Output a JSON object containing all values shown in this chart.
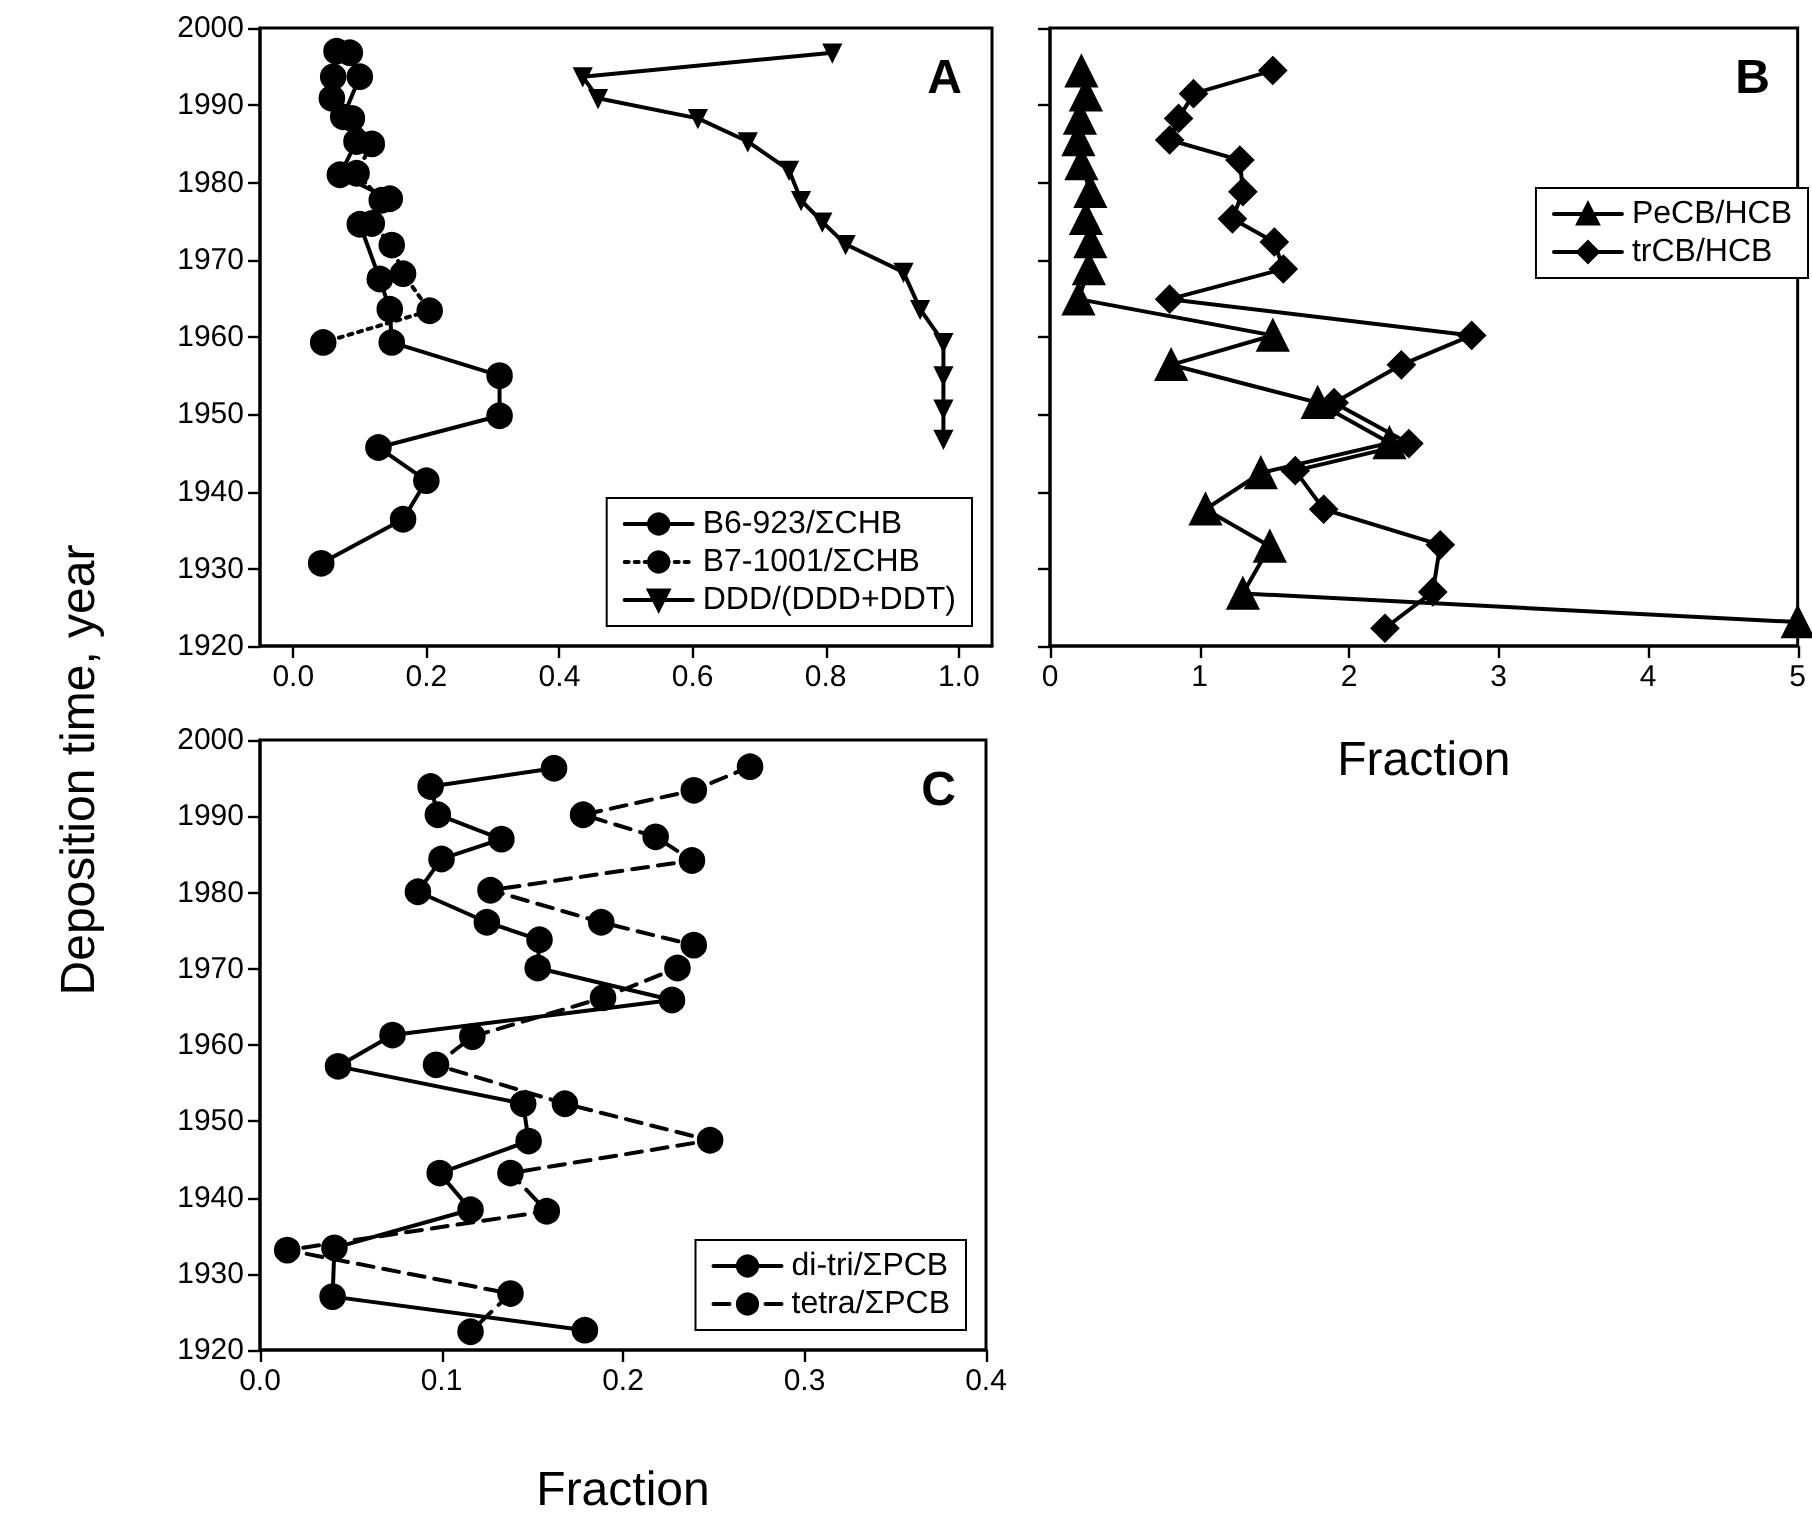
{
  "chart_data": [
    {
      "type": "line",
      "title": "A",
      "ylabel": "Deposition time, year",
      "xlim": [
        -0.05,
        1.05
      ],
      "xticks": [
        {
          "value": 0,
          "label": "0.0"
        },
        {
          "value": 0.2,
          "label": "0.2"
        },
        {
          "value": 0.4,
          "label": "0.4"
        },
        {
          "value": 0.6,
          "label": "0.6"
        },
        {
          "value": 0.8,
          "label": "0.8"
        },
        {
          "value": 1,
          "label": "1.0"
        }
      ],
      "ylim": [
        1920,
        2000
      ],
      "yticks": [
        1920,
        1930,
        1940,
        1950,
        1960,
        1970,
        1980,
        1990,
        2000
      ],
      "legend": "bottom right",
      "line_style": "solid",
      "series": [
        {
          "name": "B6-923/ΣCHB",
          "color": "#000000",
          "marker": "circle",
          "x": [
            0.085,
            0.1,
            0.075,
            0.095,
            0.07,
            0.145,
            0.1,
            0.13,
            0.145,
            0.148,
            0.31,
            0.31,
            0.128,
            0.2,
            0.165,
            0.042
          ],
          "values": [
            1996.8,
            1993.7,
            1988.5,
            1985.3,
            1981.0,
            1977.9,
            1974.6,
            1967.5,
            1963.6,
            1959.3,
            1955.0,
            1949.8,
            1945.7,
            1941.4,
            1936.4,
            1930.7
          ]
        },
        {
          "name": "B7-1001/ΣCHB",
          "color": "#000000",
          "marker": "circle",
          "line_style": "dotted",
          "x": [
            0.065,
            0.06,
            0.058,
            0.088,
            0.118,
            0.095,
            0.133,
            0.118,
            0.148,
            0.165,
            0.205,
            0.045
          ],
          "values": [
            1997.0,
            1993.7,
            1990.9,
            1988.3,
            1985.0,
            1981.2,
            1977.7,
            1974.7,
            1971.9,
            1968.2,
            1963.4,
            1959.3
          ]
        },
        {
          "name": "DDD/(DDD+DDT)",
          "color": "#000000",
          "marker": "triangle-down",
          "x": [
            0.81,
            0.435,
            0.458,
            0.608,
            0.683,
            0.745,
            0.763,
            0.795,
            0.83,
            0.917,
            0.942,
            0.977,
            0.977,
            0.977,
            0.977
          ],
          "values": [
            1996.8,
            1993.7,
            1990.9,
            1988.3,
            1985.3,
            1981.6,
            1977.7,
            1974.9,
            1972.0,
            1968.4,
            1963.6,
            1959.3,
            1955.0,
            1950.7,
            1946.8
          ]
        }
      ]
    },
    {
      "type": "line",
      "title": "B",
      "xlabel": "Fraction",
      "xlim": [
        0,
        5
      ],
      "xticks": [
        0,
        1,
        2,
        3,
        4,
        5
      ],
      "ylim": [
        1920,
        2000
      ],
      "yticks": [
        1920,
        1930,
        1940,
        1950,
        1960,
        1970,
        1980,
        1990,
        2000
      ],
      "tick_labels": "x",
      "legend": "right",
      "line_style": "solid",
      "series": [
        {
          "name": "PeCB/HCB",
          "color": "#000000",
          "marker": "triangle",
          "x": [
            0.21,
            0.24,
            0.2,
            0.19,
            0.21,
            0.27,
            0.24,
            0.27,
            0.26,
            0.19,
            1.49,
            0.81,
            1.79,
            2.27,
            1.41,
            1.04,
            1.47,
            1.29,
            5
          ],
          "values": [
            1994.4,
            1991.3,
            1988.3,
            1985.5,
            1982.4,
            1978.8,
            1975.3,
            1972.3,
            1968.8,
            1964.9,
            1960.2,
            1956.4,
            1951.5,
            1946.3,
            1942.4,
            1937.7,
            1932.9,
            1926.8,
            1923.1
          ]
        },
        {
          "name": "trCB/HCB",
          "color": "#000000",
          "marker": "diamond",
          "x": [
            1.49,
            0.96,
            0.86,
            0.8,
            1.27,
            1.29,
            1.22,
            1.5,
            1.56,
            0.8,
            2.82,
            2.35,
            1.9,
            2.4,
            1.64,
            1.83,
            2.61,
            2.56,
            2.24
          ],
          "values": [
            1994.5,
            1991.5,
            1988.3,
            1985.5,
            1982.9,
            1978.8,
            1975.3,
            1972.3,
            1968.8,
            1964.9,
            1960.2,
            1956.4,
            1951.5,
            1946.2,
            1942.7,
            1937.7,
            1933.1,
            1927.0,
            1922.3
          ]
        }
      ]
    },
    {
      "type": "line",
      "title": "C",
      "xlabel": "Fraction",
      "xlim": [
        0,
        0.4
      ],
      "xticks": [
        {
          "value": 0,
          "label": "0.0"
        },
        0.1,
        0.2,
        0.3,
        0.4
      ],
      "ylim": [
        1920,
        2000
      ],
      "yticks": [
        1920,
        1930,
        1940,
        1950,
        1960,
        1970,
        1980,
        1990,
        2000
      ],
      "legend": "bottom right",
      "line_style": "solid",
      "series": [
        {
          "name": "di-tri/ΣPCB",
          "color": "#000000",
          "marker": "circle",
          "x": [
            0.162,
            0.094,
            0.098,
            0.133,
            0.1,
            0.087,
            0.125,
            0.154,
            0.153,
            0.227,
            0.073,
            0.043,
            0.145,
            0.148,
            0.099,
            0.116,
            0.041,
            0.04,
            0.179
          ],
          "values": [
            1996.3,
            1993.9,
            1990.2,
            1987.0,
            1984.4,
            1980.1,
            1976.1,
            1973.8,
            1970.1,
            1965.9,
            1961.3,
            1957.2,
            1952.3,
            1947.4,
            1943.2,
            1938.4,
            1933.4,
            1927.0,
            1922.6
          ]
        },
        {
          "name": "tetra/ΣPCB",
          "color": "#000000",
          "marker": "circle",
          "line_style": "dashed",
          "x": [
            0.27,
            0.239,
            0.178,
            0.218,
            0.238,
            0.127,
            0.188,
            0.239,
            0.23,
            0.189,
            0.117,
            0.097,
            0.168,
            0.248,
            0.138,
            0.158,
            0.015,
            0.138,
            0.116
          ],
          "values": [
            1996.5,
            1993.4,
            1990.2,
            1987.3,
            1984.2,
            1980.3,
            1976.1,
            1973.1,
            1970.1,
            1966.2,
            1961.1,
            1957.4,
            1952.3,
            1947.5,
            1943.2,
            1938.2,
            1933.1,
            1927.4,
            1922.4
          ]
        }
      ]
    }
  ]
}
